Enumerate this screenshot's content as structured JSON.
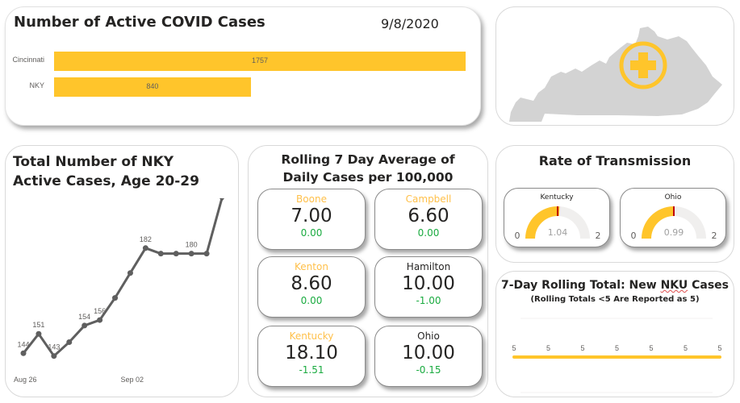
{
  "active_cases": {
    "title": "Number of Active COVID Cases",
    "date": "9/8/2020",
    "bar_color": "#ffc52b",
    "max": 1757,
    "bars": [
      {
        "label": "Cincinnati",
        "value": 1757
      },
      {
        "label": "NKY",
        "value": 840
      }
    ]
  },
  "map": {
    "icon": "kentucky-map-with-medical-cross",
    "map_color": "#d3d3d3",
    "cross_color": "#ffc52b"
  },
  "age_cases": {
    "title_line1": "Total Number of NKY",
    "title_line2": "Active Cases, Age 20-29"
  },
  "rolling_avg": {
    "title_line1": "Rolling 7 Day Average of",
    "title_line2": "Daily Cases per 100,000",
    "cards": [
      {
        "name": "Boone",
        "value": "7.00",
        "delta": "0.00",
        "name_color": "#ffc04a"
      },
      {
        "name": "Campbell",
        "value": "6.60",
        "delta": "0.00",
        "name_color": "#ffc04a"
      },
      {
        "name": "Kenton",
        "value": "8.60",
        "delta": "0.00",
        "name_color": "#ffc04a"
      },
      {
        "name": "Hamilton",
        "value": "10.00",
        "delta": "-1.00",
        "name_color": "#252423"
      },
      {
        "name": "Kentucky",
        "value": "18.10",
        "delta": "-1.51",
        "name_color": "#ffc04a"
      },
      {
        "name": "Ohio",
        "value": "10.00",
        "delta": "-0.15",
        "name_color": "#252423"
      }
    ]
  },
  "transmission": {
    "title": "Rate of Transmission",
    "gauges": [
      {
        "name": "Kentucky",
        "value": 1.04,
        "value_label": "1.04",
        "min": 0,
        "max": 2,
        "min_label": "0",
        "max_label": "2",
        "target": 1.0
      },
      {
        "name": "Ohio",
        "value": 0.99,
        "value_label": "0.99",
        "min": 0,
        "max": 2,
        "min_label": "0",
        "max_label": "2",
        "target": 1.0
      }
    ],
    "fill_color": "#ffc52b",
    "track_color": "#f0efee",
    "target_color": "#c00000"
  },
  "nku": {
    "title_pre": "7-Day Rolling Total: New ",
    "title_mid": "NKU",
    "title_post": " Cases",
    "subtitle": "(Rolling Totals <5 Are Reported as 5)"
  },
  "chart_data": [
    {
      "type": "bar",
      "title": "Number of Active COVID Cases",
      "orientation": "horizontal",
      "categories": [
        "Cincinnati",
        "NKY"
      ],
      "values": [
        1757,
        840
      ],
      "xlabel": "",
      "ylabel": ""
    },
    {
      "type": "line",
      "title": "Total Number of NKY Active Cases, Age 20-29",
      "x": [
        "Aug 26",
        "Aug 27",
        "Aug 28",
        "Aug 29",
        "Aug 30",
        "Aug 31",
        "Sep 01",
        "Sep 02",
        "Sep 03",
        "Sep 04",
        "Sep 05",
        "Sep 06",
        "Sep 07",
        "Sep 08"
      ],
      "values": [
        144,
        151,
        143,
        148,
        154,
        156,
        164,
        173,
        182,
        180,
        180,
        180,
        180,
        200
      ],
      "data_labels": {
        "0": "144",
        "1": "151",
        "2": "143",
        "4": "154",
        "5": "156",
        "8": "182",
        "11": "180"
      },
      "x_ticks": [
        "Aug 26",
        "Sep 02"
      ],
      "x_tick_index": [
        0,
        7
      ],
      "ylim": [
        140,
        200
      ],
      "color": "#5f5f5f"
    },
    {
      "type": "line",
      "title": "7-Day Rolling Total: New NKU Cases",
      "subtitle": "(Rolling Totals <5 Are Reported as 5)",
      "values": [
        5,
        5,
        5,
        5,
        5,
        5,
        5
      ],
      "data_labels": [
        "5",
        "5",
        "5",
        "5",
        "5",
        "5",
        "5"
      ],
      "color": "#ffc52b"
    }
  ]
}
